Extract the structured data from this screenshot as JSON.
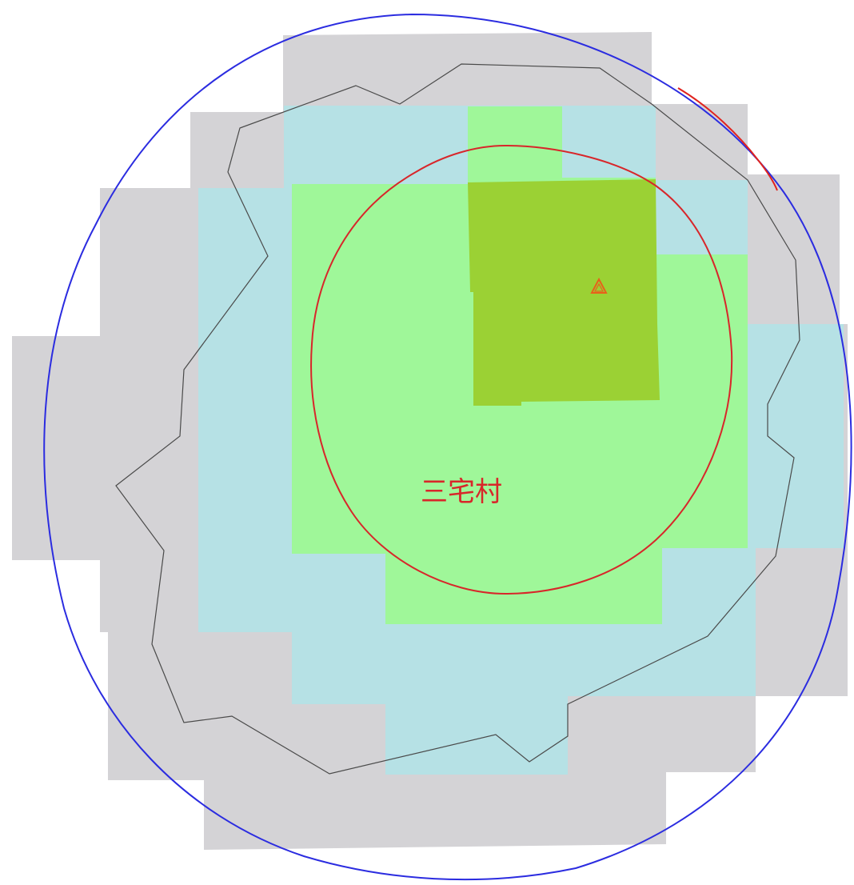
{
  "map": {
    "village_label": "三宅村",
    "layers": [
      {
        "name": "grey-zone",
        "color": "#d4d3d6"
      },
      {
        "name": "cyan-zone",
        "color": "#b6e1e5"
      },
      {
        "name": "light-green-zone",
        "color": "#9ff799"
      },
      {
        "name": "dark-green-zone",
        "color": "#9bd134"
      }
    ],
    "boundaries": [
      {
        "name": "outer-blue-boundary",
        "color": "#2b2ce0"
      },
      {
        "name": "outer-red-segment",
        "color": "#e0231e"
      },
      {
        "name": "grey-polygon-outline",
        "color": "#4a4a4a"
      },
      {
        "name": "inner-red-circle",
        "color": "#d8262a"
      }
    ],
    "marker": {
      "icon": "warning-triangle-icon",
      "color": "#e8601a"
    }
  }
}
